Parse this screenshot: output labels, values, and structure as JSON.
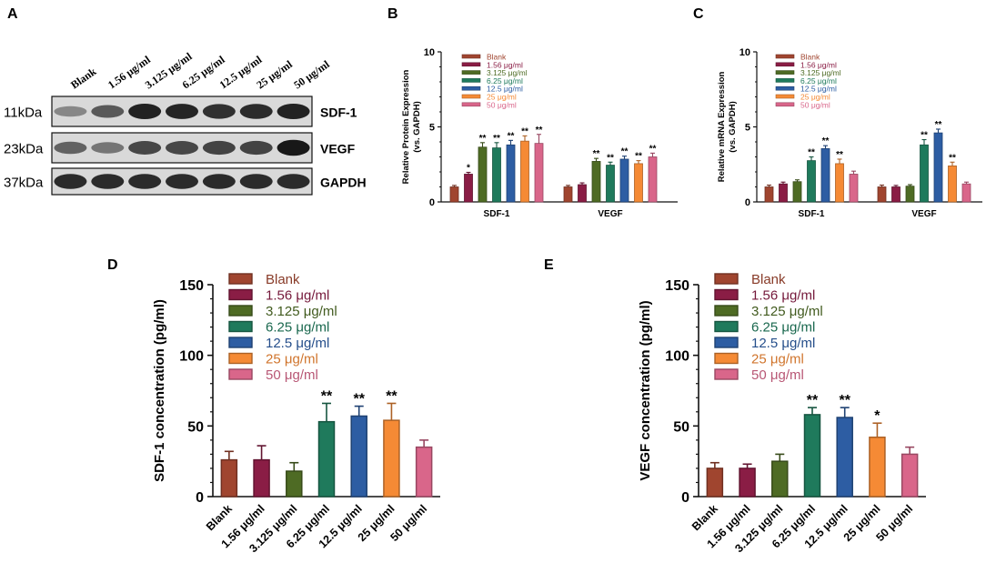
{
  "panel_labels": {
    "A": "A",
    "B": "B",
    "C": "C",
    "D": "D",
    "E": "E"
  },
  "western_blot": {
    "lanes": [
      "Blank",
      "1.56 μg/ml",
      "3.125 μg/ml",
      "6.25 μg/ml",
      "12.5 μg/ml",
      "25 μg/ml",
      "50 μg/ml"
    ],
    "rows": [
      {
        "mw": "11kDa",
        "protein": "SDF-1",
        "intensity": [
          0.35,
          0.6,
          0.9,
          0.88,
          0.82,
          0.85,
          0.9
        ]
      },
      {
        "mw": "23kDa",
        "protein": "VEGF",
        "intensity": [
          0.55,
          0.45,
          0.7,
          0.7,
          0.72,
          0.72,
          0.95
        ]
      },
      {
        "mw": "37kDa",
        "protein": "GAPDH",
        "intensity": [
          0.85,
          0.85,
          0.85,
          0.85,
          0.85,
          0.85,
          0.85
        ]
      }
    ]
  },
  "colors": [
    "#a0452f",
    "#8a1d45",
    "#4e6b24",
    "#1f7a5c",
    "#2d5da3",
    "#f58a35",
    "#d9668a"
  ],
  "chart_data": [
    {
      "id": "B",
      "type": "bar",
      "ylabel": "Relative Protein Expression\n(vs. GAPDH)",
      "ylim": [
        0,
        10
      ],
      "yticks": [
        "0",
        "5",
        "10"
      ],
      "groups": [
        "SDF-1",
        "VEGF"
      ],
      "series": [
        {
          "name": "Blank",
          "values": [
            1.0,
            1.0
          ],
          "errors": [
            0.1,
            0.1
          ],
          "sig": [
            "",
            ""
          ]
        },
        {
          "name": "1.56 μg/ml",
          "values": [
            1.85,
            1.15
          ],
          "errors": [
            0.12,
            0.12
          ],
          "sig": [
            "*",
            ""
          ]
        },
        {
          "name": "3.125 μg/ml",
          "values": [
            3.65,
            2.7
          ],
          "errors": [
            0.3,
            0.2
          ],
          "sig": [
            "**",
            "**"
          ]
        },
        {
          "name": "6.25 μg/ml",
          "values": [
            3.6,
            2.45
          ],
          "errors": [
            0.35,
            0.2
          ],
          "sig": [
            "**",
            "**"
          ]
        },
        {
          "name": "12.5 μg/ml",
          "values": [
            3.8,
            2.85
          ],
          "errors": [
            0.3,
            0.2
          ],
          "sig": [
            "**",
            "**"
          ]
        },
        {
          "name": "25 μg/ml",
          "values": [
            4.05,
            2.55
          ],
          "errors": [
            0.35,
            0.2
          ],
          "sig": [
            "**",
            "**"
          ]
        },
        {
          "name": "50 μg/ml",
          "values": [
            3.9,
            3.0
          ],
          "errors": [
            0.6,
            0.25
          ],
          "sig": [
            "**",
            "**"
          ]
        }
      ]
    },
    {
      "id": "C",
      "type": "bar",
      "ylabel": "Relative mRNA Expression\n(vs. GAPDH)",
      "ylim": [
        0,
        10
      ],
      "yticks": [
        "0",
        "5",
        "10"
      ],
      "groups": [
        "SDF-1",
        "VEGF"
      ],
      "series": [
        {
          "name": "Blank",
          "values": [
            1.0,
            1.0
          ],
          "errors": [
            0.12,
            0.12
          ],
          "sig": [
            "",
            ""
          ]
        },
        {
          "name": "1.56 μg/ml",
          "values": [
            1.2,
            1.0
          ],
          "errors": [
            0.12,
            0.1
          ],
          "sig": [
            "",
            ""
          ]
        },
        {
          "name": "3.125 μg/ml",
          "values": [
            1.35,
            1.05
          ],
          "errors": [
            0.12,
            0.1
          ],
          "sig": [
            "",
            ""
          ]
        },
        {
          "name": "6.25 μg/ml",
          "values": [
            2.75,
            3.8
          ],
          "errors": [
            0.25,
            0.35
          ],
          "sig": [
            "**",
            "**"
          ]
        },
        {
          "name": "12.5 μg/ml",
          "values": [
            3.55,
            4.6
          ],
          "errors": [
            0.2,
            0.25
          ],
          "sig": [
            "**",
            "**"
          ]
        },
        {
          "name": "25 μg/ml",
          "values": [
            2.55,
            2.4
          ],
          "errors": [
            0.3,
            0.25
          ],
          "sig": [
            "**",
            "**"
          ]
        },
        {
          "name": "50 μg/ml",
          "values": [
            1.85,
            1.2
          ],
          "errors": [
            0.2,
            0.12
          ],
          "sig": [
            "",
            ""
          ]
        }
      ]
    },
    {
      "id": "D",
      "type": "bar",
      "ylabel": "SDF-1 concentration (pg/ml)",
      "ylim": [
        0,
        150
      ],
      "yticks": [
        "0",
        "50",
        "100",
        "150"
      ],
      "categories": [
        "Blank",
        "1.56 μg/ml",
        "3.125 μg/ml",
        "6.25 μg/ml",
        "12.5 μg/ml",
        "25 μg/ml",
        "50 μg/ml"
      ],
      "values": [
        26,
        26,
        18,
        53,
        57,
        54,
        35
      ],
      "errors": [
        6,
        10,
        6,
        13,
        7,
        12,
        5
      ],
      "sig": [
        "",
        "",
        "",
        "**",
        "**",
        "**",
        ""
      ],
      "legend": [
        "Blank",
        "1.56 μg/ml",
        "3.125 μg/ml",
        "6.25 μg/ml",
        "12.5 μg/ml",
        "25 μg/ml",
        "50 μg/ml"
      ]
    },
    {
      "id": "E",
      "type": "bar",
      "ylabel": "VEGF concentration (pg/ml)",
      "ylim": [
        0,
        150
      ],
      "yticks": [
        "0",
        "50",
        "100",
        "150"
      ],
      "categories": [
        "Blank",
        "1.56 μg/ml",
        "3.125 μg/ml",
        "6.25 μg/ml",
        "12.5 μg/ml",
        "25 μg/ml",
        "50 μg/ml"
      ],
      "values": [
        20,
        20,
        25,
        58,
        56,
        42,
        30
      ],
      "errors": [
        4,
        3,
        5,
        5,
        7,
        10,
        5
      ],
      "sig": [
        "",
        "",
        "",
        "**",
        "**",
        "*",
        ""
      ],
      "legend": [
        "Blank",
        "1.56 μg/ml",
        "3.125 μg/ml",
        "6.25 μg/ml",
        "12.5 μg/ml",
        "25 μg/ml",
        "50 μg/ml"
      ]
    }
  ]
}
